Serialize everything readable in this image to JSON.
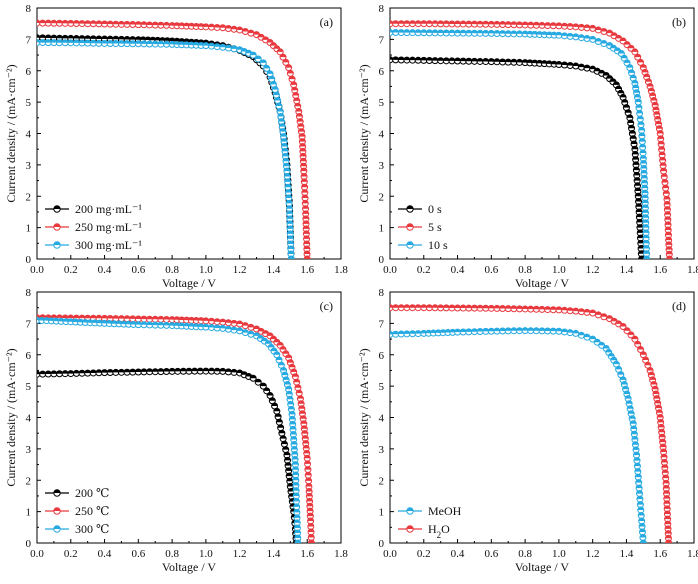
{
  "chart_data": [
    {
      "type": "line",
      "panel_label": "(a)",
      "xlabel": "Voltage / V",
      "ylabel": "Current density / (mA·cm⁻²)",
      "xlim": [
        0,
        1.8
      ],
      "ylim": [
        0,
        8
      ],
      "xticks": [
        "0.0",
        "0.2",
        "0.4",
        "0.6",
        "0.8",
        "1.0",
        "1.2",
        "1.4",
        "1.6",
        "1.8"
      ],
      "yticks": [
        "0",
        "1",
        "2",
        "3",
        "4",
        "5",
        "6",
        "7",
        "8"
      ],
      "legend_position": "bottom-left",
      "series": [
        {
          "name": "200 mg·mL⁻¹",
          "color": "#000000",
          "points": [
            [
              0,
              7.05
            ],
            [
              0.2,
              7.03
            ],
            [
              0.4,
              7.01
            ],
            [
              0.6,
              6.99
            ],
            [
              0.8,
              6.95
            ],
            [
              1.0,
              6.88
            ],
            [
              1.1,
              6.8
            ],
            [
              1.2,
              6.65
            ],
            [
              1.28,
              6.45
            ],
            [
              1.34,
              6.15
            ],
            [
              1.38,
              5.8
            ],
            [
              1.41,
              5.3
            ],
            [
              1.44,
              4.7
            ],
            [
              1.46,
              4.0
            ],
            [
              1.48,
              3.0
            ],
            [
              1.495,
              1.7
            ],
            [
              1.505,
              0.0
            ]
          ]
        },
        {
          "name": "250 mg·mL⁻¹",
          "color": "#e8393f",
          "points": [
            [
              0,
              7.52
            ],
            [
              0.2,
              7.51
            ],
            [
              0.4,
              7.49
            ],
            [
              0.6,
              7.47
            ],
            [
              0.8,
              7.44
            ],
            [
              1.0,
              7.4
            ],
            [
              1.1,
              7.37
            ],
            [
              1.2,
              7.3
            ],
            [
              1.3,
              7.15
            ],
            [
              1.38,
              6.9
            ],
            [
              1.44,
              6.6
            ],
            [
              1.49,
              6.1
            ],
            [
              1.52,
              5.55
            ],
            [
              1.55,
              4.7
            ],
            [
              1.57,
              3.9
            ],
            [
              1.58,
              2.8
            ],
            [
              1.59,
              1.6
            ],
            [
              1.6,
              0.0
            ]
          ]
        },
        {
          "name": "300 mg·mL⁻¹",
          "color": "#27a9e1",
          "points": [
            [
              0,
              6.9
            ],
            [
              0.2,
              6.89
            ],
            [
              0.4,
              6.87
            ],
            [
              0.6,
              6.86
            ],
            [
              0.8,
              6.84
            ],
            [
              1.0,
              6.8
            ],
            [
              1.1,
              6.75
            ],
            [
              1.2,
              6.67
            ],
            [
              1.28,
              6.5
            ],
            [
              1.34,
              6.25
            ],
            [
              1.38,
              5.9
            ],
            [
              1.41,
              5.4
            ],
            [
              1.44,
              4.7
            ],
            [
              1.46,
              3.9
            ],
            [
              1.48,
              2.8
            ],
            [
              1.495,
              1.6
            ],
            [
              1.505,
              0.0
            ]
          ]
        }
      ]
    },
    {
      "type": "line",
      "panel_label": "(b)",
      "xlabel": "Voltage / V",
      "ylabel": "Current density / (mA·cm⁻²)",
      "xlim": [
        0,
        1.8
      ],
      "ylim": [
        0,
        8
      ],
      "xticks": [
        "0.0",
        "0.2",
        "0.4",
        "0.6",
        "0.8",
        "1.0",
        "1.2",
        "1.4",
        "1.6",
        "1.8"
      ],
      "yticks": [
        "0",
        "1",
        "2",
        "3",
        "4",
        "5",
        "6",
        "7",
        "8"
      ],
      "legend_position": "bottom-left",
      "series": [
        {
          "name": "0 s",
          "color": "#000000",
          "points": [
            [
              0,
              6.35
            ],
            [
              0.2,
              6.33
            ],
            [
              0.4,
              6.31
            ],
            [
              0.6,
              6.29
            ],
            [
              0.8,
              6.26
            ],
            [
              1.0,
              6.2
            ],
            [
              1.1,
              6.15
            ],
            [
              1.2,
              6.05
            ],
            [
              1.28,
              5.85
            ],
            [
              1.34,
              5.55
            ],
            [
              1.38,
              5.15
            ],
            [
              1.42,
              4.5
            ],
            [
              1.45,
              3.5
            ],
            [
              1.47,
              2.0
            ],
            [
              1.49,
              0.0
            ]
          ]
        },
        {
          "name": "5 s",
          "color": "#e8393f",
          "points": [
            [
              0,
              7.5
            ],
            [
              0.2,
              7.5
            ],
            [
              0.4,
              7.49
            ],
            [
              0.6,
              7.48
            ],
            [
              0.8,
              7.46
            ],
            [
              1.0,
              7.43
            ],
            [
              1.1,
              7.4
            ],
            [
              1.2,
              7.35
            ],
            [
              1.3,
              7.2
            ],
            [
              1.38,
              6.95
            ],
            [
              1.45,
              6.6
            ],
            [
              1.5,
              6.1
            ],
            [
              1.54,
              5.5
            ],
            [
              1.57,
              4.9
            ],
            [
              1.6,
              4.0
            ],
            [
              1.62,
              2.8
            ],
            [
              1.64,
              1.9
            ],
            [
              1.65,
              0.6
            ],
            [
              1.655,
              0.0
            ]
          ]
        },
        {
          "name": "10 s",
          "color": "#27a9e1",
          "points": [
            [
              0,
              7.22
            ],
            [
              0.2,
              7.21
            ],
            [
              0.4,
              7.2
            ],
            [
              0.6,
              7.19
            ],
            [
              0.8,
              7.17
            ],
            [
              1.0,
              7.13
            ],
            [
              1.1,
              7.08
            ],
            [
              1.2,
              7.0
            ],
            [
              1.3,
              6.8
            ],
            [
              1.37,
              6.55
            ],
            [
              1.42,
              6.1
            ],
            [
              1.45,
              5.6
            ],
            [
              1.47,
              5.0
            ],
            [
              1.49,
              4.1
            ],
            [
              1.5,
              3.2
            ],
            [
              1.51,
              2.1
            ],
            [
              1.515,
              1.0
            ],
            [
              1.52,
              0.0
            ]
          ]
        }
      ]
    },
    {
      "type": "line",
      "panel_label": "(c)",
      "xlabel": "Voltage / V",
      "ylabel": "Current density / (mA·cm⁻²)",
      "xlim": [
        0,
        1.8
      ],
      "ylim": [
        0,
        8
      ],
      "xticks": [
        "0.0",
        "0.2",
        "0.4",
        "0.6",
        "0.8",
        "1.0",
        "1.2",
        "1.4",
        "1.6",
        "1.8"
      ],
      "yticks": [
        "0",
        "1",
        "2",
        "3",
        "4",
        "5",
        "6",
        "7",
        "8"
      ],
      "legend_position": "bottom-left",
      "series": [
        {
          "name": "200 ℃",
          "color": "#000000",
          "points": [
            [
              0,
              5.38
            ],
            [
              0.2,
              5.4
            ],
            [
              0.4,
              5.43
            ],
            [
              0.6,
              5.45
            ],
            [
              0.8,
              5.47
            ],
            [
              1.0,
              5.48
            ],
            [
              1.1,
              5.47
            ],
            [
              1.2,
              5.42
            ],
            [
              1.28,
              5.25
            ],
            [
              1.34,
              5.0
            ],
            [
              1.38,
              4.7
            ],
            [
              1.42,
              4.2
            ],
            [
              1.45,
              3.5
            ],
            [
              1.48,
              2.8
            ],
            [
              1.5,
              1.8
            ],
            [
              1.52,
              1.0
            ],
            [
              1.53,
              0.45
            ],
            [
              1.535,
              0.0
            ]
          ]
        },
        {
          "name": "250 ℃",
          "color": "#e8393f",
          "points": [
            [
              0,
              7.18
            ],
            [
              0.2,
              7.17
            ],
            [
              0.4,
              7.16
            ],
            [
              0.6,
              7.14
            ],
            [
              0.8,
              7.12
            ],
            [
              1.0,
              7.08
            ],
            [
              1.1,
              7.04
            ],
            [
              1.2,
              6.98
            ],
            [
              1.3,
              6.82
            ],
            [
              1.38,
              6.6
            ],
            [
              1.44,
              6.3
            ],
            [
              1.49,
              5.9
            ],
            [
              1.53,
              5.3
            ],
            [
              1.56,
              4.6
            ],
            [
              1.58,
              3.8
            ],
            [
              1.6,
              2.7
            ],
            [
              1.61,
              1.8
            ],
            [
              1.62,
              0.7
            ],
            [
              1.625,
              0.0
            ]
          ]
        },
        {
          "name": "300 ℃",
          "color": "#27a9e1",
          "points": [
            [
              0,
              7.1
            ],
            [
              0.2,
              7.05
            ],
            [
              0.4,
              7.0
            ],
            [
              0.6,
              6.96
            ],
            [
              0.8,
              6.93
            ],
            [
              1.0,
              6.88
            ],
            [
              1.1,
              6.84
            ],
            [
              1.2,
              6.76
            ],
            [
              1.3,
              6.6
            ],
            [
              1.37,
              6.35
            ],
            [
              1.42,
              6.0
            ],
            [
              1.46,
              5.5
            ],
            [
              1.49,
              4.9
            ],
            [
              1.51,
              4.1
            ],
            [
              1.52,
              3.3
            ],
            [
              1.53,
              2.5
            ],
            [
              1.535,
              1.5
            ],
            [
              1.54,
              0.8
            ],
            [
              1.545,
              0.0
            ]
          ]
        }
      ]
    },
    {
      "type": "line",
      "panel_label": "(d)",
      "xlabel": "Voltage / V",
      "ylabel": "Current density / (mA·cm⁻²)",
      "xlim": [
        0,
        1.8
      ],
      "ylim": [
        0,
        8
      ],
      "xticks": [
        "0.0",
        "0.2",
        "0.4",
        "0.6",
        "0.8",
        "1.0",
        "1.2",
        "1.4",
        "1.6",
        "1.8"
      ],
      "yticks": [
        "0",
        "1",
        "2",
        "3",
        "4",
        "5",
        "6",
        "7",
        "8"
      ],
      "legend_position": "bottom-left",
      "series": [
        {
          "name": "MeOH",
          "color": "#27a9e1",
          "points": [
            [
              0,
              6.65
            ],
            [
              0.2,
              6.68
            ],
            [
              0.4,
              6.72
            ],
            [
              0.6,
              6.75
            ],
            [
              0.8,
              6.77
            ],
            [
              1.0,
              6.75
            ],
            [
              1.1,
              6.68
            ],
            [
              1.2,
              6.5
            ],
            [
              1.28,
              6.2
            ],
            [
              1.34,
              5.7
            ],
            [
              1.38,
              5.2
            ],
            [
              1.41,
              4.6
            ],
            [
              1.44,
              3.8
            ],
            [
              1.46,
              2.8
            ],
            [
              1.48,
              1.4
            ],
            [
              1.5,
              0.0
            ]
          ]
        },
        {
          "name": "H2O",
          "color": "#e8393f",
          "points": [
            [
              0,
              7.5
            ],
            [
              0.2,
              7.5
            ],
            [
              0.4,
              7.49
            ],
            [
              0.6,
              7.48
            ],
            [
              0.8,
              7.46
            ],
            [
              1.0,
              7.43
            ],
            [
              1.1,
              7.39
            ],
            [
              1.2,
              7.33
            ],
            [
              1.3,
              7.15
            ],
            [
              1.38,
              6.9
            ],
            [
              1.45,
              6.5
            ],
            [
              1.5,
              6.0
            ],
            [
              1.54,
              5.5
            ],
            [
              1.57,
              4.9
            ],
            [
              1.6,
              4.0
            ],
            [
              1.62,
              2.9
            ],
            [
              1.635,
              1.9
            ],
            [
              1.645,
              0.6
            ],
            [
              1.65,
              0.0
            ]
          ]
        }
      ]
    }
  ]
}
